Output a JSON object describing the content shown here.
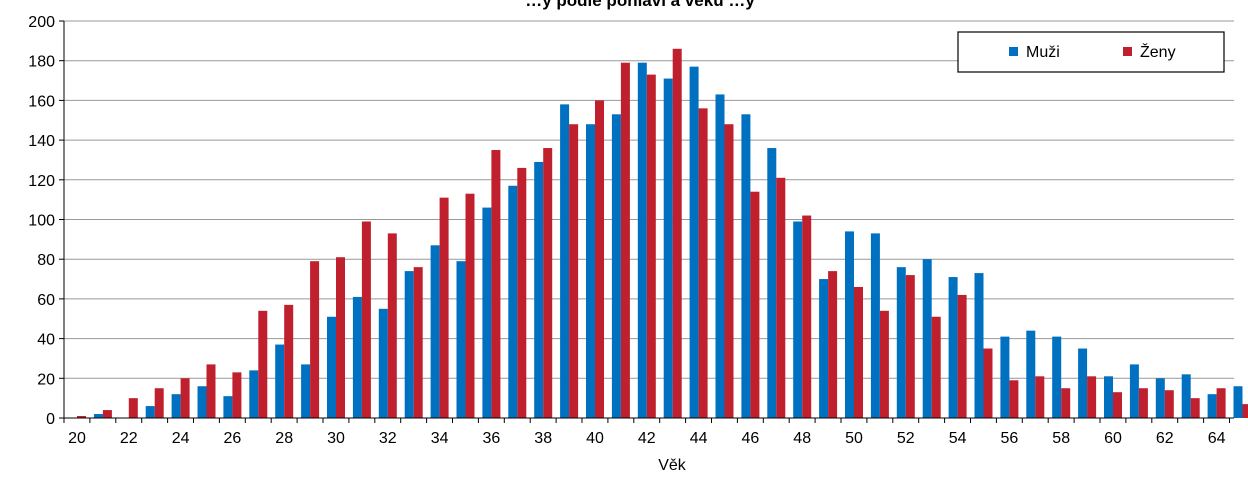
{
  "chart_data": {
    "type": "bar",
    "title": "…y podle pohlaví a věku …y",
    "xlabel": "Věk",
    "ylabel": "",
    "ylim": [
      0,
      200
    ],
    "yticks": [
      0,
      20,
      40,
      60,
      80,
      100,
      120,
      140,
      160,
      180,
      200
    ],
    "grid": true,
    "legend_position": "top-right",
    "categories": [
      20,
      21,
      22,
      23,
      24,
      25,
      26,
      27,
      28,
      29,
      30,
      31,
      32,
      33,
      34,
      35,
      36,
      37,
      38,
      39,
      40,
      41,
      42,
      43,
      44,
      45,
      46,
      47,
      48,
      49,
      50,
      51,
      52,
      53,
      54,
      55,
      56,
      57,
      58,
      59,
      60,
      61,
      62,
      63,
      64,
      65
    ],
    "xtick_labels": [
      "20",
      "22",
      "24",
      "26",
      "28",
      "30",
      "32",
      "34",
      "36",
      "38",
      "40",
      "42",
      "44",
      "46",
      "48",
      "50",
      "52",
      "54",
      "56",
      "58",
      "60",
      "62",
      "64"
    ],
    "series": [
      {
        "name": "Muži",
        "color": "#0070C0",
        "values": [
          0,
          2,
          0,
          6,
          12,
          16,
          11,
          24,
          37,
          27,
          51,
          61,
          55,
          74,
          87,
          79,
          106,
          117,
          129,
          158,
          148,
          153,
          179,
          171,
          177,
          163,
          153,
          136,
          99,
          70,
          94,
          93,
          76,
          80,
          71,
          73,
          41,
          44,
          41,
          35,
          21,
          27,
          20,
          22,
          12,
          16
        ]
      },
      {
        "name": "Ženy",
        "color": "#C0202E",
        "values": [
          1,
          4,
          10,
          15,
          20,
          27,
          23,
          54,
          57,
          79,
          81,
          99,
          93,
          76,
          111,
          113,
          135,
          126,
          136,
          148,
          160,
          179,
          173,
          186,
          156,
          148,
          114,
          121,
          102,
          74,
          66,
          54,
          72,
          51,
          62,
          35,
          19,
          21,
          15,
          21,
          13,
          15,
          14,
          10,
          15,
          7
        ]
      }
    ]
  }
}
